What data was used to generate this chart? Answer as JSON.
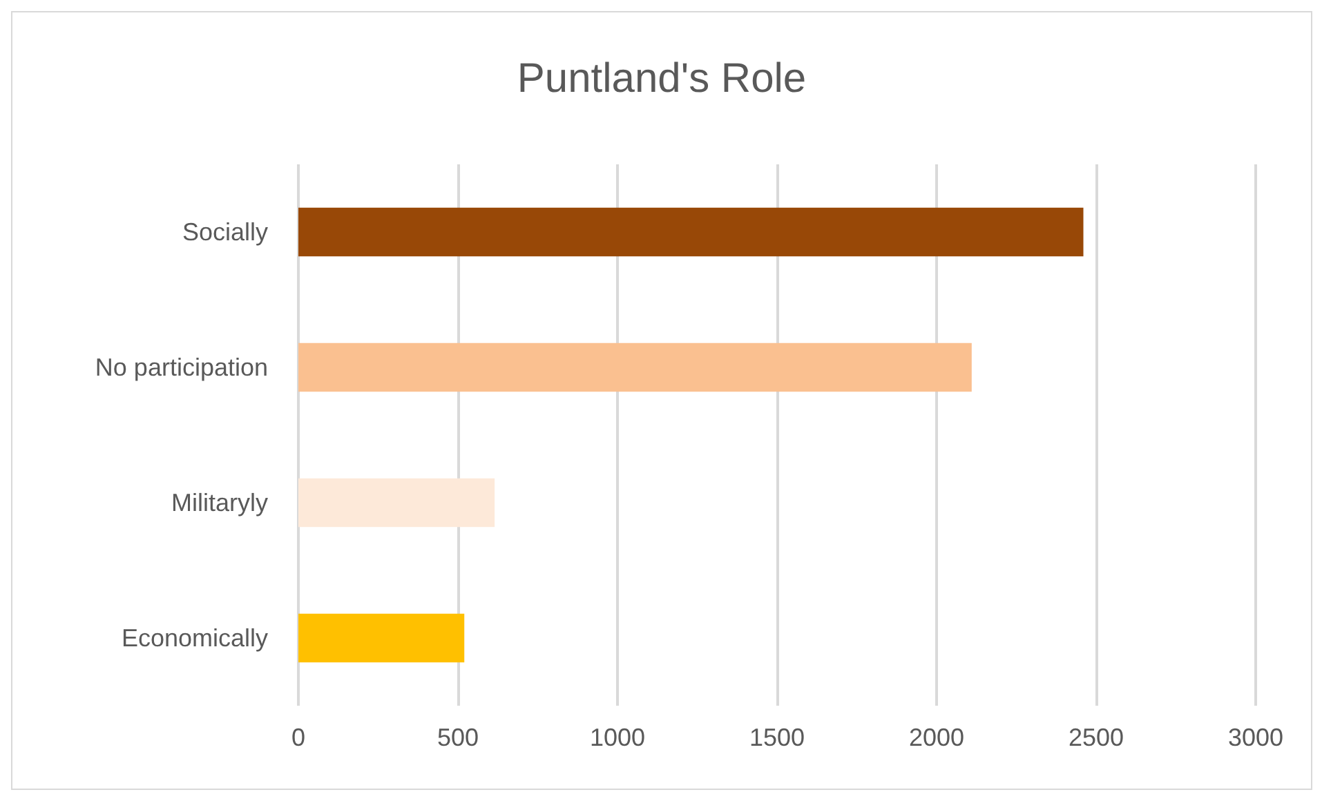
{
  "chart_data": {
    "type": "bar",
    "orientation": "horizontal",
    "title": "Puntland's Role",
    "categories": [
      "Socially",
      "No participation",
      "Militaryly",
      "Economically"
    ],
    "values": [
      2460,
      2110,
      615,
      520
    ],
    "colors": [
      "#984807",
      "#fac090",
      "#fde9d9",
      "#ffc000"
    ],
    "xlim": [
      0,
      3000
    ],
    "xticks": [
      0,
      500,
      1000,
      1500,
      2000,
      2500,
      3000
    ],
    "grid": "x"
  }
}
